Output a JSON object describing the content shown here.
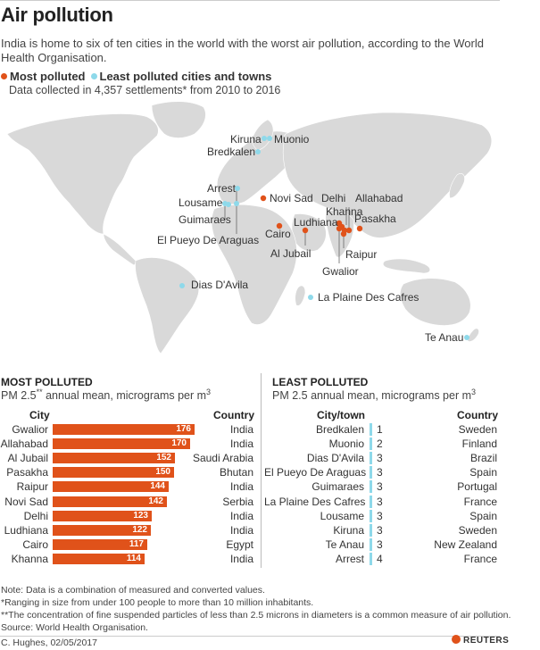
{
  "header": {
    "title": "Air pollution",
    "subtitle": "India is home to six of ten cities in the world with the worst air pollution, according to the World Health Organisation.",
    "legend_most": "Most polluted",
    "legend_least": "Least polluted cities and towns",
    "data_note": "Data collected in 4,357 settlements* from 2010 to 2016"
  },
  "colors": {
    "most": "#e0521a",
    "least": "#8ed9ea",
    "land": "#d9d9d9"
  },
  "map_labels": {
    "kiruna": "Kiruna",
    "muonio": "Muonio",
    "bredkalen": "Bredkalen",
    "arrest": "Arrest",
    "lousame": "Lousame",
    "guimaraes": "Guimaraes",
    "el_pueyo": "El Pueyo De Araguas",
    "novi_sad": "Novi Sad",
    "cairo": "Cairo",
    "al_jubail": "Al Jubail",
    "delhi": "Delhi",
    "khanna": "Khanna",
    "ludhiana": "Ludhiana",
    "allahabad": "Allahabad",
    "pasakha": "Pasakha",
    "raipur": "Raipur",
    "gwalior": "Gwalior",
    "dias_davila": "Dias D'Avila",
    "la_plaine": "La Plaine Des Cafres",
    "te_anau": "Te Anau"
  },
  "most_polluted": {
    "title": "MOST POLLUTED",
    "subtitle_main": "PM 2.5",
    "subtitle_marks": "**",
    "subtitle_rest": " annual mean, micrograms per m",
    "subtitle_exp": "3",
    "col_city": "City",
    "col_country": "Country"
  },
  "least_polluted": {
    "title": "LEAST POLLUTED",
    "subtitle_main": "PM 2.5 annual mean, micrograms per m",
    "subtitle_exp": "3",
    "col_city": "City/town",
    "col_country": "Country"
  },
  "chart_data": [
    {
      "type": "bar",
      "title": "MOST POLLUTED",
      "ylabel": "PM 2.5 annual mean, micrograms per m3",
      "categories": [
        "Gwalior",
        "Allahabad",
        "Al Jubail",
        "Pasakha",
        "Raipur",
        "Novi Sad",
        "Delhi",
        "Ludhiana",
        "Cairo",
        "Khanna"
      ],
      "values": [
        176,
        170,
        152,
        150,
        144,
        142,
        123,
        122,
        117,
        114
      ],
      "countries": [
        "India",
        "India",
        "Saudi Arabia",
        "Bhutan",
        "India",
        "Serbia",
        "India",
        "India",
        "Egypt",
        "India"
      ],
      "ylim": [
        0,
        176
      ]
    },
    {
      "type": "table",
      "title": "LEAST POLLUTED",
      "ylabel": "PM 2.5 annual mean, micrograms per m3",
      "categories": [
        "Bredkalen",
        "Muonio",
        "Dias D'Avila",
        "El Pueyo De Araguas",
        "Guimaraes",
        "La Plaine Des Cafres",
        "Lousame",
        "Kiruna",
        "Te Anau",
        "Arrest"
      ],
      "values": [
        1,
        2,
        3,
        3,
        3,
        3,
        3,
        3,
        3,
        4
      ],
      "countries": [
        "Sweden",
        "Finland",
        "Brazil",
        "Spain",
        "Portugal",
        "France",
        "Spain",
        "Sweden",
        "New Zealand",
        "France"
      ]
    }
  ],
  "footer": {
    "note1": "Note: Data is a combination of  measured and converted values.",
    "note2": "*Ranging in size from under 100 people to more than 10 million inhabitants.",
    "note3": "**The concentration of fine suspended particles of less than  2.5 microns in diameters is a common measure of air pollution.",
    "source": "Source: World Health Organisation.",
    "credit": "C. Hughes, 02/05/2017",
    "brand": "REUTERS"
  }
}
